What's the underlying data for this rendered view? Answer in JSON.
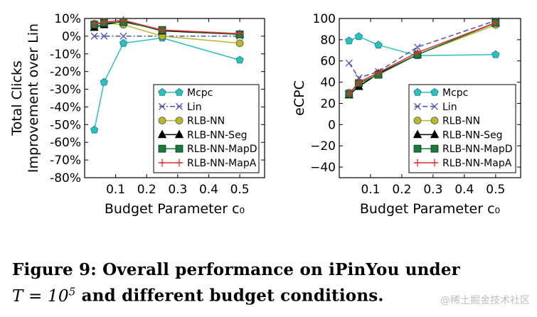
{
  "caption": {
    "line1": "Figure 9:  Overall performance on iPinYou under",
    "line2_math_prefix": "T = 10",
    "line2_math_sup": "5",
    "line2_rest": " and different budget conditions."
  },
  "watermark": "@稀土掘金技术社区",
  "chart_data": [
    {
      "type": "line",
      "title": "",
      "xlabel": "Budget Parameter c₀",
      "ylabel_line1": "Total Clicks",
      "ylabel_line2": "Improvement over Lin",
      "xlim": [
        0.0,
        0.58
      ],
      "ylim": [
        -80,
        10
      ],
      "xticks": [
        0.1,
        0.2,
        0.3,
        0.4,
        0.5
      ],
      "xtick_labels": [
        "0.1",
        "0.2",
        "0.3",
        "0.4",
        "0.5"
      ],
      "yticks": [
        -80,
        -70,
        -60,
        -50,
        -40,
        -30,
        -20,
        -10,
        0,
        10
      ],
      "ytick_labels": [
        "-80%",
        "-70%",
        "-60%",
        "-50%",
        "-40%",
        "-30%",
        "-20%",
        "-10%",
        "0%",
        "10%"
      ],
      "legend_position": "lower-right",
      "x": [
        0.03125,
        0.0625,
        0.125,
        0.25,
        0.5
      ],
      "series": [
        {
          "name": "Mcpc",
          "color": "#2bbfbf",
          "marker": "pentagon",
          "dash": "solid",
          "values": [
            -53,
            -26,
            -4,
            -1,
            -13.5
          ]
        },
        {
          "name": "Lin",
          "color": "#4a55a8",
          "marker": "x",
          "dash": "dashdot",
          "values": [
            0,
            0,
            0,
            0,
            0
          ]
        },
        {
          "name": "RLB-NN",
          "color": "#b8b82a",
          "marker": "circle",
          "dash": "solid",
          "values": [
            7,
            7.5,
            6.5,
            0,
            -4
          ]
        },
        {
          "name": "RLB-NN-Seg",
          "color": "#000000",
          "marker": "triangle",
          "dash": "solid",
          "values": [
            5,
            6.5,
            8.5,
            3,
            1
          ]
        },
        {
          "name": "RLB-NN-MapD",
          "color": "#1a7a3a",
          "marker": "square",
          "dash": "solid",
          "values": [
            6.5,
            7.5,
            8,
            3.5,
            1
          ]
        },
        {
          "name": "RLB-NN-MapA",
          "color": "#e03030",
          "marker": "plus",
          "dash": "solid",
          "values": [
            7,
            8,
            9,
            3.5,
            1.5
          ]
        }
      ]
    },
    {
      "type": "line",
      "title": "",
      "xlabel": "Budget Parameter c₀",
      "ylabel": "eCPC",
      "xlim": [
        0.0,
        0.58
      ],
      "ylim": [
        -50,
        100
      ],
      "xticks": [
        0.1,
        0.2,
        0.3,
        0.4,
        0.5
      ],
      "xtick_labels": [
        "0.1",
        "0.2",
        "0.3",
        "0.4",
        "0.5"
      ],
      "yticks": [
        -40,
        -20,
        0,
        20,
        40,
        60,
        80,
        100
      ],
      "ytick_labels": [
        "−40",
        "−20",
        "0",
        "20",
        "40",
        "60",
        "80",
        "100"
      ],
      "legend_position": "lower-right",
      "x": [
        0.03125,
        0.0625,
        0.125,
        0.25,
        0.5
      ],
      "series": [
        {
          "name": "Mcpc",
          "color": "#2bbfbf",
          "marker": "pentagon",
          "dash": "solid",
          "values": [
            79,
            83,
            75,
            65,
            66
          ]
        },
        {
          "name": "Lin",
          "color": "#4a55a8",
          "marker": "x",
          "dash": "dashed",
          "values": [
            58,
            44,
            50,
            73,
            98
          ]
        },
        {
          "name": "RLB-NN",
          "color": "#b8b82a",
          "marker": "circle",
          "dash": "solid",
          "values": [
            30,
            38,
            48,
            66,
            94
          ]
        },
        {
          "name": "RLB-NN-Seg",
          "color": "#000000",
          "marker": "triangle",
          "dash": "solid",
          "values": [
            28,
            36,
            48,
            66,
            96
          ]
        },
        {
          "name": "RLB-NN-MapD",
          "color": "#1a7a3a",
          "marker": "square",
          "dash": "solid",
          "values": [
            29,
            39,
            47,
            66,
            96
          ]
        },
        {
          "name": "RLB-NN-MapA",
          "color": "#e03030",
          "marker": "plus",
          "dash": "solid",
          "values": [
            29,
            40,
            49,
            68,
            96
          ]
        }
      ]
    }
  ]
}
